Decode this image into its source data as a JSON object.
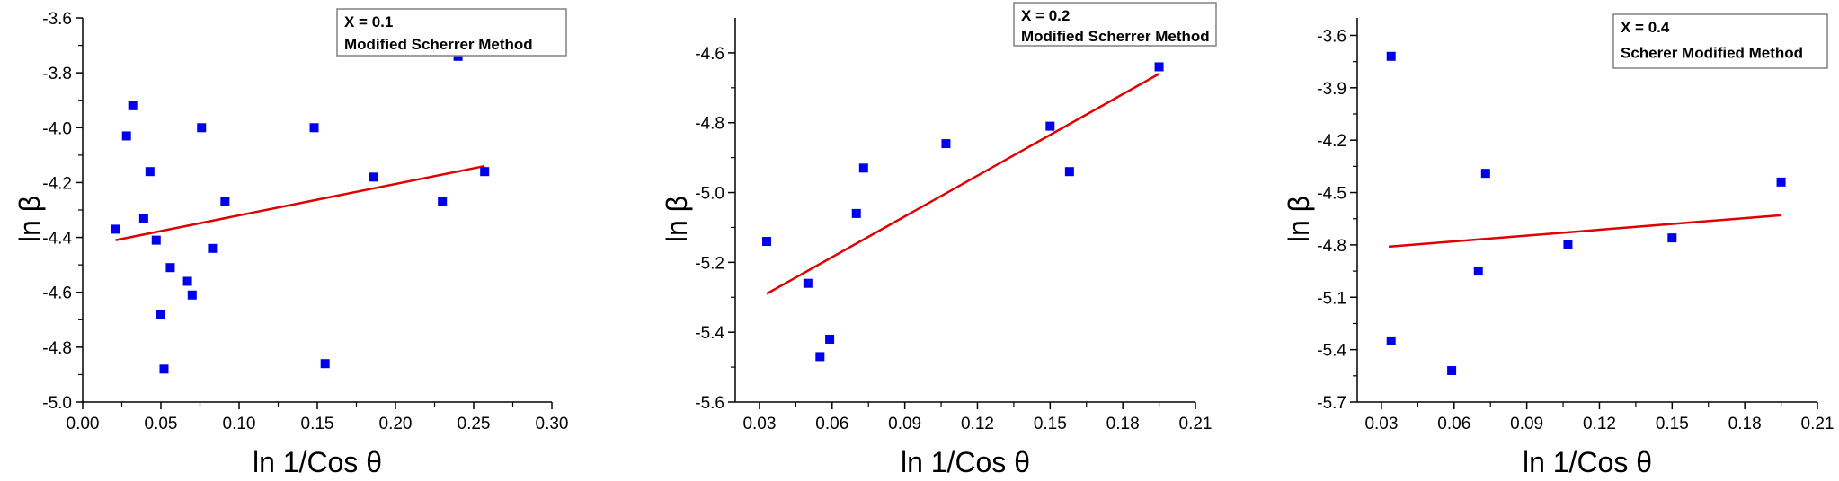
{
  "colors": {
    "points": "#0000ee",
    "fit_line": "#e00000",
    "axis": "#000000",
    "legend_border": "#808080"
  },
  "chart_data": [
    {
      "type": "scatter",
      "legend_lines": [
        "X = 0.1",
        "Modified Scherrer Method"
      ],
      "xlabel": "ln 1/Cos θ",
      "ylabel": "ln β",
      "xlim": [
        0.0,
        0.3
      ],
      "ylim": [
        -5.0,
        -3.6
      ],
      "xticks": [
        0.0,
        0.05,
        0.1,
        0.15,
        0.2,
        0.25,
        0.3
      ],
      "xtick_labels": [
        "0.00",
        "0.05",
        "0.10",
        "0.15",
        "0.20",
        "0.25",
        "0.30"
      ],
      "yticks": [
        -5.0,
        -4.8,
        -4.6,
        -4.4,
        -4.2,
        -4.0,
        -3.8,
        -3.6
      ],
      "ytick_labels": [
        "-5.0",
        "-4.8",
        "-4.6",
        "-4.4",
        "-4.2",
        "-4.0",
        "-3.8",
        "-3.6"
      ],
      "points": [
        [
          0.021,
          -4.37
        ],
        [
          0.028,
          -4.03
        ],
        [
          0.032,
          -3.92
        ],
        [
          0.039,
          -4.33
        ],
        [
          0.043,
          -4.16
        ],
        [
          0.047,
          -4.41
        ],
        [
          0.05,
          -4.68
        ],
        [
          0.052,
          -4.88
        ],
        [
          0.056,
          -4.51
        ],
        [
          0.067,
          -4.56
        ],
        [
          0.07,
          -4.61
        ],
        [
          0.076,
          -4.0
        ],
        [
          0.083,
          -4.44
        ],
        [
          0.091,
          -4.27
        ],
        [
          0.148,
          -4.0
        ],
        [
          0.155,
          -4.86
        ],
        [
          0.186,
          -4.18
        ],
        [
          0.23,
          -4.27
        ],
        [
          0.24,
          -3.74
        ],
        [
          0.257,
          -4.16
        ]
      ],
      "fit_line": [
        [
          0.021,
          -4.41
        ],
        [
          0.257,
          -4.14
        ]
      ]
    },
    {
      "type": "scatter",
      "legend_lines": [
        "X = 0.2",
        "Modified Scherrer Method"
      ],
      "xlabel": "ln 1/Cos θ",
      "ylabel": "ln β",
      "xlim": [
        0.02,
        0.21
      ],
      "ylim": [
        -5.6,
        -4.5
      ],
      "xticks": [
        0.03,
        0.06,
        0.09,
        0.12,
        0.15,
        0.18,
        0.21
      ],
      "xtick_labels": [
        "0.03",
        "0.06",
        "0.09",
        "0.12",
        "0.15",
        "0.18",
        "0.21"
      ],
      "yticks": [
        -5.6,
        -5.4,
        -5.2,
        -5.0,
        -4.8,
        -4.6
      ],
      "ytick_labels": [
        "-5.6",
        "-5.4",
        "-5.2",
        "-5.0",
        "-4.8",
        "-4.6"
      ],
      "points": [
        [
          0.033,
          -5.14
        ],
        [
          0.05,
          -5.26
        ],
        [
          0.055,
          -5.47
        ],
        [
          0.059,
          -5.42
        ],
        [
          0.07,
          -5.06
        ],
        [
          0.073,
          -4.93
        ],
        [
          0.107,
          -4.86
        ],
        [
          0.15,
          -4.81
        ],
        [
          0.158,
          -4.94
        ],
        [
          0.195,
          -4.64
        ]
      ],
      "fit_line": [
        [
          0.033,
          -5.29
        ],
        [
          0.195,
          -4.66
        ]
      ]
    },
    {
      "type": "scatter",
      "legend_lines": [
        "X = 0.4",
        "Scherer Modified Method"
      ],
      "xlabel": "ln 1/Cos θ",
      "ylabel": "ln β",
      "xlim": [
        0.02,
        0.21
      ],
      "ylim": [
        -5.7,
        -3.5
      ],
      "xticks": [
        0.03,
        0.06,
        0.09,
        0.12,
        0.15,
        0.18,
        0.21
      ],
      "xtick_labels": [
        "0.03",
        "0.06",
        "0.09",
        "0.12",
        "0.15",
        "0.18",
        "0.21"
      ],
      "yticks": [
        -5.7,
        -5.4,
        -5.1,
        -4.8,
        -4.5,
        -4.2,
        -3.9,
        -3.6
      ],
      "ytick_labels": [
        "-5.7",
        "-5.4",
        "-5.1",
        "-4.8",
        "-4.5",
        "-4.2",
        "-3.9",
        "-3.6"
      ],
      "points": [
        [
          0.034,
          -3.72
        ],
        [
          0.034,
          -5.35
        ],
        [
          0.059,
          -5.52
        ],
        [
          0.07,
          -4.95
        ],
        [
          0.073,
          -4.39
        ],
        [
          0.107,
          -4.8
        ],
        [
          0.15,
          -4.76
        ],
        [
          0.195,
          -4.44
        ]
      ],
      "fit_line": [
        [
          0.033,
          -4.81
        ],
        [
          0.195,
          -4.63
        ]
      ]
    }
  ]
}
